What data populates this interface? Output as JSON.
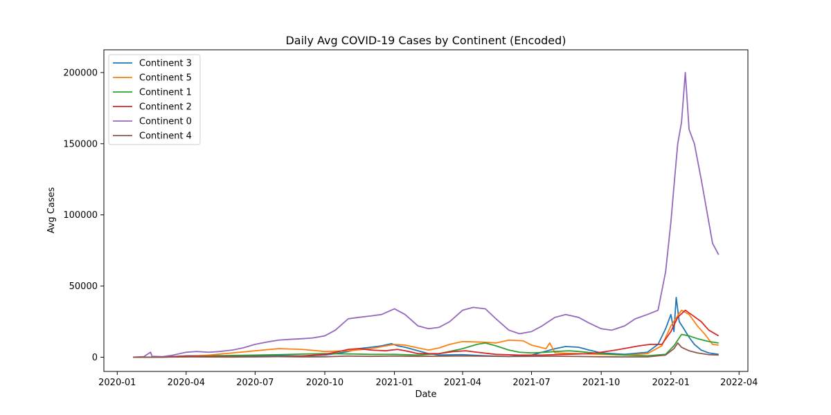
{
  "chart_data": {
    "type": "line",
    "title": "Daily Avg COVID-19 Cases by Continent (Encoded)",
    "xlabel": "Date",
    "ylabel": "Avg Cases",
    "x_range": [
      "2020-01-22",
      "2022-03-05"
    ],
    "ylim": [
      -10000,
      216000
    ],
    "x_ticks": [
      {
        "date": "2020-01-01",
        "label": "2020-01"
      },
      {
        "date": "2020-04-01",
        "label": "2020-04"
      },
      {
        "date": "2020-07-01",
        "label": "2020-07"
      },
      {
        "date": "2020-10-01",
        "label": "2020-10"
      },
      {
        "date": "2021-01-01",
        "label": "2021-01"
      },
      {
        "date": "2021-04-01",
        "label": "2021-04"
      },
      {
        "date": "2021-07-01",
        "label": "2021-07"
      },
      {
        "date": "2021-10-01",
        "label": "2021-10"
      },
      {
        "date": "2022-01-01",
        "label": "2022-01"
      },
      {
        "date": "2022-04-01",
        "label": "2022-04"
      }
    ],
    "y_ticks": [
      0,
      50000,
      100000,
      150000,
      200000
    ],
    "y_tick_labels": [
      "0",
      "50000",
      "100000",
      "150000",
      "200000"
    ],
    "grid": false,
    "legend_position": "top-left",
    "series": [
      {
        "name": "Continent 3",
        "color": "#1f77b4",
        "points": [
          [
            "2020-01-22",
            0
          ],
          [
            "2020-03-01",
            100
          ],
          [
            "2020-04-01",
            900
          ],
          [
            "2020-05-01",
            1200
          ],
          [
            "2020-06-01",
            1000
          ],
          [
            "2020-07-01",
            1000
          ],
          [
            "2020-08-01",
            1100
          ],
          [
            "2020-09-01",
            900
          ],
          [
            "2020-10-01",
            1500
          ],
          [
            "2020-10-15",
            2500
          ],
          [
            "2020-11-01",
            4000
          ],
          [
            "2020-11-15",
            6000
          ],
          [
            "2020-12-01",
            7000
          ],
          [
            "2020-12-15",
            8000
          ],
          [
            "2020-12-28",
            9500
          ],
          [
            "2021-01-05",
            8000
          ],
          [
            "2021-01-15",
            7000
          ],
          [
            "2021-02-01",
            4500
          ],
          [
            "2021-02-15",
            2500
          ],
          [
            "2021-03-01",
            1500
          ],
          [
            "2021-04-01",
            1800
          ],
          [
            "2021-05-01",
            1000
          ],
          [
            "2021-06-01",
            500
          ],
          [
            "2021-07-01",
            1500
          ],
          [
            "2021-07-15",
            3500
          ],
          [
            "2021-08-01",
            6000
          ],
          [
            "2021-08-15",
            7500
          ],
          [
            "2021-09-01",
            7000
          ],
          [
            "2021-09-15",
            5000
          ],
          [
            "2021-10-01",
            3000
          ],
          [
            "2021-11-01",
            2000
          ],
          [
            "2021-12-01",
            3500
          ],
          [
            "2021-12-15",
            9000
          ],
          [
            "2021-12-25",
            20000
          ],
          [
            "2022-01-01",
            30000
          ],
          [
            "2022-01-05",
            18000
          ],
          [
            "2022-01-08",
            42000
          ],
          [
            "2022-01-12",
            25000
          ],
          [
            "2022-01-18",
            20000
          ],
          [
            "2022-01-25",
            14000
          ],
          [
            "2022-02-01",
            9000
          ],
          [
            "2022-02-10",
            5000
          ],
          [
            "2022-02-20",
            3000
          ],
          [
            "2022-03-05",
            2000
          ]
        ]
      },
      {
        "name": "Continent 5",
        "color": "#ff7f0e",
        "points": [
          [
            "2020-01-22",
            0
          ],
          [
            "2020-03-01",
            50
          ],
          [
            "2020-04-01",
            500
          ],
          [
            "2020-05-01",
            1500
          ],
          [
            "2020-06-01",
            3000
          ],
          [
            "2020-07-01",
            4500
          ],
          [
            "2020-08-01",
            6000
          ],
          [
            "2020-09-01",
            5500
          ],
          [
            "2020-10-01",
            4000
          ],
          [
            "2020-11-01",
            4500
          ],
          [
            "2020-12-01",
            6000
          ],
          [
            "2021-01-01",
            9000
          ],
          [
            "2021-01-15",
            8500
          ],
          [
            "2021-02-01",
            6500
          ],
          [
            "2021-02-15",
            5000
          ],
          [
            "2021-03-01",
            6500
          ],
          [
            "2021-03-15",
            9000
          ],
          [
            "2021-04-01",
            11000
          ],
          [
            "2021-05-01",
            10500
          ],
          [
            "2021-05-15",
            10000
          ],
          [
            "2021-06-01",
            12000
          ],
          [
            "2021-06-20",
            11500
          ],
          [
            "2021-07-01",
            8500
          ],
          [
            "2021-07-20",
            6000
          ],
          [
            "2021-07-25",
            10000
          ],
          [
            "2021-08-01",
            3000
          ],
          [
            "2021-09-01",
            2500
          ],
          [
            "2021-10-01",
            2000
          ],
          [
            "2021-11-01",
            1500
          ],
          [
            "2021-12-01",
            2500
          ],
          [
            "2021-12-20",
            8000
          ],
          [
            "2022-01-01",
            22000
          ],
          [
            "2022-01-15",
            33000
          ],
          [
            "2022-01-25",
            30000
          ],
          [
            "2022-02-05",
            22000
          ],
          [
            "2022-02-15",
            16000
          ],
          [
            "2022-02-25",
            9000
          ],
          [
            "2022-03-05",
            8500
          ]
        ]
      },
      {
        "name": "Continent 1",
        "color": "#2ca02c",
        "points": [
          [
            "2020-01-22",
            0
          ],
          [
            "2020-03-01",
            50
          ],
          [
            "2020-04-01",
            300
          ],
          [
            "2020-05-01",
            800
          ],
          [
            "2020-06-01",
            1200
          ],
          [
            "2020-07-01",
            1500
          ],
          [
            "2020-08-01",
            1800
          ],
          [
            "2020-09-01",
            2200
          ],
          [
            "2020-10-01",
            2500
          ],
          [
            "2020-11-01",
            2300
          ],
          [
            "2020-12-01",
            2000
          ],
          [
            "2021-01-01",
            2000
          ],
          [
            "2021-02-01",
            1500
          ],
          [
            "2021-03-01",
            2500
          ],
          [
            "2021-04-01",
            6000
          ],
          [
            "2021-04-20",
            9000
          ],
          [
            "2021-05-01",
            10000
          ],
          [
            "2021-05-15",
            8000
          ],
          [
            "2021-06-01",
            5000
          ],
          [
            "2021-06-15",
            3500
          ],
          [
            "2021-07-01",
            3000
          ],
          [
            "2021-07-20",
            3500
          ],
          [
            "2021-08-01",
            4000
          ],
          [
            "2021-08-20",
            4500
          ],
          [
            "2021-09-01",
            4000
          ],
          [
            "2021-10-01",
            2500
          ],
          [
            "2021-11-01",
            1500
          ],
          [
            "2021-12-01",
            1000
          ],
          [
            "2021-12-25",
            2000
          ],
          [
            "2022-01-05",
            8000
          ],
          [
            "2022-01-15",
            16000
          ],
          [
            "2022-01-25",
            15000
          ],
          [
            "2022-02-05",
            13000
          ],
          [
            "2022-02-20",
            11000
          ],
          [
            "2022-03-05",
            10000
          ]
        ]
      },
      {
        "name": "Continent 2",
        "color": "#d62728",
        "points": [
          [
            "2020-01-22",
            0
          ],
          [
            "2020-03-01",
            100
          ],
          [
            "2020-04-01",
            800
          ],
          [
            "2020-05-01",
            500
          ],
          [
            "2020-06-01",
            300
          ],
          [
            "2020-07-01",
            300
          ],
          [
            "2020-08-01",
            400
          ],
          [
            "2020-09-01",
            800
          ],
          [
            "2020-10-01",
            2000
          ],
          [
            "2020-10-20",
            4000
          ],
          [
            "2020-11-01",
            5500
          ],
          [
            "2020-11-15",
            6000
          ],
          [
            "2020-12-01",
            5000
          ],
          [
            "2020-12-20",
            4500
          ],
          [
            "2021-01-05",
            5500
          ],
          [
            "2021-01-20",
            4000
          ],
          [
            "2021-02-01",
            2500
          ],
          [
            "2021-03-01",
            2500
          ],
          [
            "2021-03-20",
            4000
          ],
          [
            "2021-04-05",
            4500
          ],
          [
            "2021-04-20",
            3500
          ],
          [
            "2021-05-15",
            2000
          ],
          [
            "2021-06-15",
            1500
          ],
          [
            "2021-07-15",
            1500
          ],
          [
            "2021-08-15",
            2000
          ],
          [
            "2021-09-15",
            2500
          ],
          [
            "2021-10-01",
            3500
          ],
          [
            "2021-10-20",
            5000
          ],
          [
            "2021-11-05",
            6500
          ],
          [
            "2021-11-20",
            8000
          ],
          [
            "2021-12-05",
            9000
          ],
          [
            "2021-12-20",
            9000
          ],
          [
            "2022-01-01",
            18000
          ],
          [
            "2022-01-10",
            28000
          ],
          [
            "2022-01-20",
            33000
          ],
          [
            "2022-01-28",
            30000
          ],
          [
            "2022-02-10",
            25000
          ],
          [
            "2022-02-20",
            19000
          ],
          [
            "2022-03-05",
            15000
          ]
        ]
      },
      {
        "name": "Continent 0",
        "color": "#9467bd",
        "points": [
          [
            "2020-01-22",
            0
          ],
          [
            "2020-02-05",
            400
          ],
          [
            "2020-02-14",
            3500
          ],
          [
            "2020-02-16",
            600
          ],
          [
            "2020-03-01",
            400
          ],
          [
            "2020-03-15",
            1500
          ],
          [
            "2020-04-01",
            3500
          ],
          [
            "2020-04-15",
            4000
          ],
          [
            "2020-05-01",
            3500
          ],
          [
            "2020-05-15",
            4000
          ],
          [
            "2020-06-01",
            5000
          ],
          [
            "2020-06-15",
            6500
          ],
          [
            "2020-07-01",
            9000
          ],
          [
            "2020-07-15",
            10500
          ],
          [
            "2020-08-01",
            12000
          ],
          [
            "2020-08-15",
            12500
          ],
          [
            "2020-09-01",
            13000
          ],
          [
            "2020-09-15",
            13500
          ],
          [
            "2020-10-01",
            15000
          ],
          [
            "2020-10-15",
            19000
          ],
          [
            "2020-11-01",
            27000
          ],
          [
            "2020-11-15",
            28000
          ],
          [
            "2020-12-01",
            29000
          ],
          [
            "2020-12-15",
            30000
          ],
          [
            "2021-01-01",
            34000
          ],
          [
            "2021-01-15",
            30000
          ],
          [
            "2021-02-01",
            22000
          ],
          [
            "2021-02-15",
            20000
          ],
          [
            "2021-03-01",
            21000
          ],
          [
            "2021-03-15",
            25000
          ],
          [
            "2021-04-01",
            33000
          ],
          [
            "2021-04-15",
            35000
          ],
          [
            "2021-05-01",
            34000
          ],
          [
            "2021-05-15",
            27000
          ],
          [
            "2021-06-01",
            19000
          ],
          [
            "2021-06-15",
            16500
          ],
          [
            "2021-07-01",
            18000
          ],
          [
            "2021-07-15",
            22000
          ],
          [
            "2021-08-01",
            28000
          ],
          [
            "2021-08-15",
            30000
          ],
          [
            "2021-09-01",
            28000
          ],
          [
            "2021-09-15",
            24000
          ],
          [
            "2021-10-01",
            20000
          ],
          [
            "2021-10-15",
            19000
          ],
          [
            "2021-11-01",
            22000
          ],
          [
            "2021-11-15",
            27000
          ],
          [
            "2021-12-01",
            30000
          ],
          [
            "2021-12-15",
            33000
          ],
          [
            "2021-12-25",
            60000
          ],
          [
            "2022-01-01",
            95000
          ],
          [
            "2022-01-05",
            120000
          ],
          [
            "2022-01-10",
            150000
          ],
          [
            "2022-01-15",
            165000
          ],
          [
            "2022-01-20",
            200000
          ],
          [
            "2022-01-25",
            160000
          ],
          [
            "2022-02-01",
            150000
          ],
          [
            "2022-02-10",
            125000
          ],
          [
            "2022-02-20",
            95000
          ],
          [
            "2022-02-25",
            80000
          ],
          [
            "2022-03-05",
            72000
          ]
        ]
      },
      {
        "name": "Continent 4",
        "color": "#8c564b",
        "points": [
          [
            "2020-01-22",
            0
          ],
          [
            "2020-03-01",
            30
          ],
          [
            "2020-04-01",
            200
          ],
          [
            "2020-05-01",
            150
          ],
          [
            "2020-06-01",
            100
          ],
          [
            "2020-07-01",
            300
          ],
          [
            "2020-08-01",
            400
          ],
          [
            "2020-09-01",
            200
          ],
          [
            "2020-10-01",
            300
          ],
          [
            "2020-11-01",
            800
          ],
          [
            "2020-12-01",
            600
          ],
          [
            "2021-01-01",
            800
          ],
          [
            "2021-02-01",
            600
          ],
          [
            "2021-03-01",
            700
          ],
          [
            "2021-04-01",
            900
          ],
          [
            "2021-05-01",
            700
          ],
          [
            "2021-06-01",
            500
          ],
          [
            "2021-07-01",
            600
          ],
          [
            "2021-08-01",
            700
          ],
          [
            "2021-09-01",
            500
          ],
          [
            "2021-10-01",
            300
          ],
          [
            "2021-11-01",
            200
          ],
          [
            "2021-12-01",
            200
          ],
          [
            "2021-12-25",
            1500
          ],
          [
            "2022-01-05",
            6000
          ],
          [
            "2022-01-10",
            10000
          ],
          [
            "2022-01-15",
            7000
          ],
          [
            "2022-01-25",
            4500
          ],
          [
            "2022-02-05",
            3000
          ],
          [
            "2022-02-20",
            1800
          ],
          [
            "2022-03-05",
            1500
          ]
        ]
      }
    ]
  }
}
